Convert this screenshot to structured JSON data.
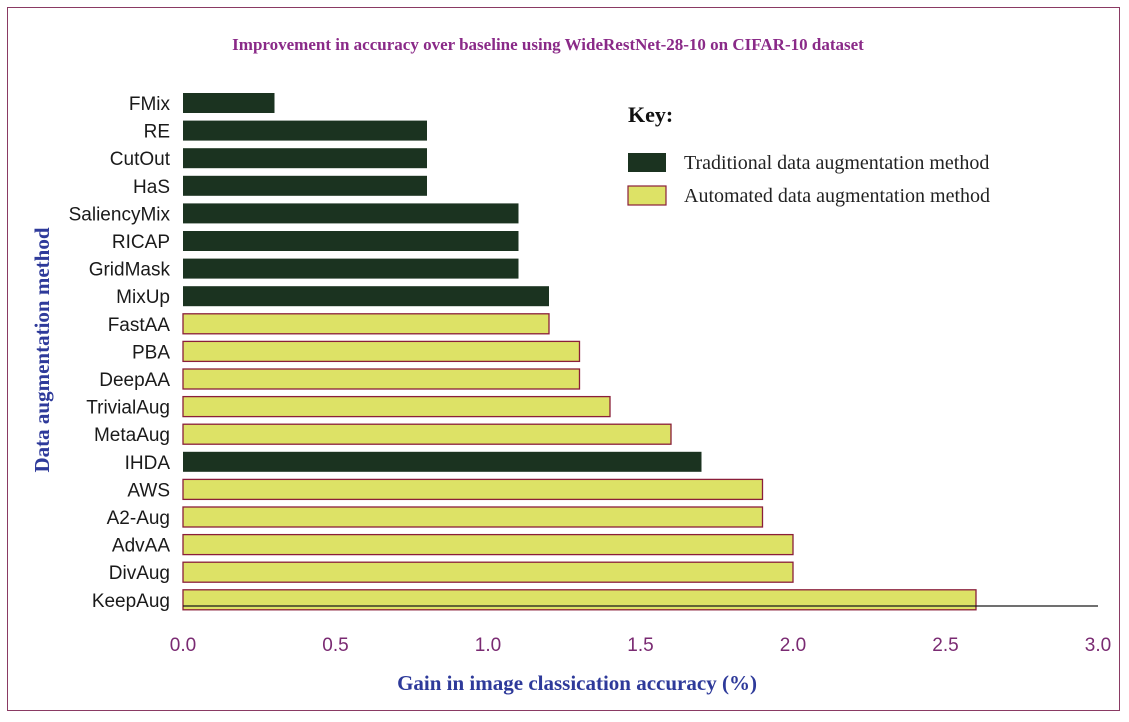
{
  "chart_data": {
    "type": "bar",
    "orientation": "horizontal",
    "title": "Improvement in accuracy over baseline using WideRestNet-28-10 on CIFAR-10 dataset",
    "xlabel": "Gain in image classication accuracy (%)",
    "ylabel": "Data augmentation method",
    "xlim": [
      0.0,
      3.0
    ],
    "xticks": [
      "0.0",
      "0.5",
      "1.0",
      "1.5",
      "2.0",
      "2.5",
      "3.0"
    ],
    "grid": false,
    "legend_placement": "top-right",
    "legend": {
      "title": "Key:",
      "entries": [
        {
          "label": "Traditional data augmentation method",
          "type": "traditional"
        },
        {
          "label": "Automated data augmentation method",
          "type": "automated"
        }
      ]
    },
    "colors": {
      "traditional_fill": "#1b3320",
      "automated_fill": "#dde266",
      "automated_stroke": "#8a1f3a",
      "title": "#8a2a88",
      "axis_label": "#2e3a9a",
      "tick": "#7a2a72"
    },
    "categories": [
      "FMix",
      "RE",
      "CutOut",
      "HaS",
      "SaliencyMix",
      "RICAP",
      "GridMask",
      "MixUp",
      "FastAA",
      "PBA",
      "DeepAA",
      "TrivialAug",
      "MetaAug",
      "IHDA",
      "AWS",
      "A2-Aug",
      "AdvAA",
      "DivAug",
      "KeepAug"
    ],
    "values": [
      0.3,
      0.8,
      0.8,
      0.8,
      1.1,
      1.1,
      1.1,
      1.2,
      1.2,
      1.3,
      1.3,
      1.4,
      1.6,
      1.7,
      1.9,
      1.9,
      2.0,
      2.0,
      2.6
    ],
    "method_type": [
      "traditional",
      "traditional",
      "traditional",
      "traditional",
      "traditional",
      "traditional",
      "traditional",
      "traditional",
      "automated",
      "automated",
      "automated",
      "automated",
      "automated",
      "traditional",
      "automated",
      "automated",
      "automated",
      "automated",
      "automated"
    ]
  }
}
